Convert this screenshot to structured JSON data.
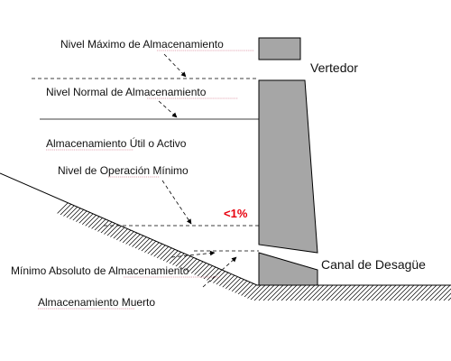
{
  "labels": {
    "max_level": "Nivel Máximo de Almacenamiento",
    "normal_level": "Nivel Normal de Almacenamiento",
    "useful_storage": "Almacenamiento Útil o Activo",
    "min_operation_level": "Nivel de Operación Mínimo",
    "absolute_min_storage": "Mínimo Absoluto de Almacenamiento",
    "dead_storage": "Almacenamiento Muerto",
    "spillway": "Vertedor",
    "outlet_channel": "Canal de Desagüe",
    "percent_note": "<1%"
  },
  "colors": {
    "dam_fill": "#a6a6a6",
    "outline": "#000000",
    "note": "#e8000d",
    "ground_hatch": "#000000"
  }
}
